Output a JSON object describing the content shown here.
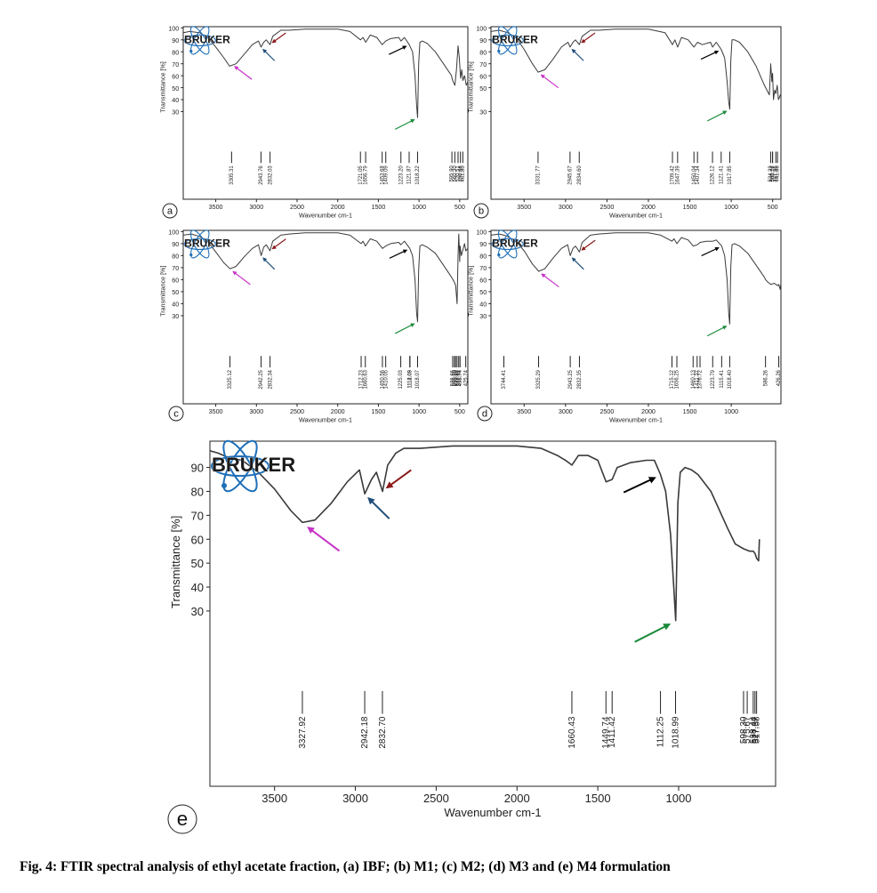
{
  "figure": {
    "caption": "Fig. 4: FTIR spectral analysis of ethyl acetate fraction, (a) IBF; (b) M1; (c) M2; (d) M3 and (e) M4 formulation",
    "brand_logo_text": "BRUKER",
    "colors": {
      "spectrum": "#3a3a3a",
      "logo_blue": "#1f6fb8",
      "arrow_magenta": "#c832c8",
      "arrow_blue": "#1f4e79",
      "arrow_darkred": "#8b1a1a",
      "arrow_black": "#000000",
      "arrow_green": "#1a8a3a"
    }
  },
  "chart_data": [
    {
      "panel": "a",
      "type": "line",
      "xlabel": "Wavenumber cm-1",
      "ylabel": "Transmittance [%]",
      "xlim": [
        3900,
        400
      ],
      "ylim": [
        0,
        101
      ],
      "x_ticks": [
        3500,
        3000,
        2500,
        2000,
        1500,
        1000,
        500
      ],
      "y_ticks": [
        30,
        40,
        50,
        60,
        70,
        80,
        90,
        100
      ],
      "peak_labels": [
        "3305.31",
        "2943.76",
        "2832.03",
        "1721.05",
        "1656.79",
        "1453.68",
        "1409.09",
        "1223.20",
        "1121.87",
        "1018.22",
        "595.90",
        "560.30",
        "520.51",
        "490.66",
        "461.80"
      ],
      "series": [
        {
          "x": [
            3900,
            3820,
            3700,
            3600,
            3500,
            3400,
            3330,
            3250,
            3150,
            3050,
            2975,
            2943,
            2910,
            2880,
            2832,
            2800,
            2700,
            2600,
            2400,
            2000,
            1850,
            1720,
            1690,
            1656,
            1600,
            1520,
            1453,
            1409,
            1350,
            1250,
            1223,
            1180,
            1121,
            1080,
            1050,
            1030,
            1018,
            1005,
            990,
            960,
            900,
            800,
            700,
            600,
            596,
            580,
            560,
            540,
            520,
            505,
            490,
            475,
            461,
            440,
            420,
            400
          ],
          "y": [
            96,
            97,
            96,
            92,
            84,
            75,
            68,
            70,
            78,
            86,
            89,
            84,
            88,
            90,
            86,
            93,
            98,
            98,
            99,
            99,
            97,
            90,
            92,
            88,
            94,
            92,
            86,
            89,
            91,
            92,
            89,
            92,
            86,
            80,
            60,
            35,
            25,
            70,
            88,
            89,
            87,
            80,
            70,
            60,
            58,
            55,
            52,
            65,
            85,
            75,
            58,
            65,
            56,
            60,
            52,
            55
          ]
        }
      ],
      "annotations": [
        {
          "color": "#c832c8",
          "at_x": 3305
        },
        {
          "color": "#1f4e79",
          "at_x": 2943
        },
        {
          "color": "#8b1a1a",
          "at_x": 2832
        },
        {
          "color": "#000000",
          "at_x": 1121
        },
        {
          "color": "#1a8a3a",
          "at_x": 1018
        }
      ]
    },
    {
      "panel": "b",
      "type": "line",
      "xlabel": "Wavenumber cm-1",
      "ylabel": "Transmittance [%]",
      "xlim": [
        3900,
        400
      ],
      "ylim": [
        0,
        101
      ],
      "x_ticks": [
        3500,
        3000,
        2500,
        2000,
        1500,
        1000,
        500
      ],
      "y_ticks": [
        30,
        50,
        60,
        70,
        80,
        90,
        100
      ],
      "peak_labels": [
        "3331.77",
        "2945.67",
        "2834.60",
        "1709.42",
        "1647.39",
        "1450.04",
        "1407.34",
        "1226.12",
        "1121.41",
        "1017.85",
        "524.33",
        "501.17",
        "500.76",
        "461.86",
        "441.88"
      ],
      "series": [
        {
          "x": [
            3900,
            3800,
            3700,
            3600,
            3500,
            3400,
            3331,
            3250,
            3150,
            3050,
            2970,
            2945,
            2910,
            2880,
            2834,
            2800,
            2700,
            2600,
            2400,
            2000,
            1800,
            1709,
            1680,
            1647,
            1600,
            1520,
            1450,
            1407,
            1350,
            1250,
            1226,
            1180,
            1121,
            1080,
            1050,
            1030,
            1017,
            1005,
            990,
            960,
            900,
            800,
            700,
            600,
            540,
            524,
            510,
            501,
            490,
            475,
            461,
            445,
            430,
            400
          ],
          "y": [
            97,
            98,
            96,
            92,
            82,
            70,
            63,
            65,
            74,
            84,
            88,
            84,
            88,
            90,
            86,
            93,
            98,
            98,
            99,
            99,
            96,
            86,
            90,
            84,
            92,
            90,
            84,
            88,
            86,
            88,
            84,
            88,
            82,
            75,
            55,
            38,
            32,
            72,
            90,
            90,
            88,
            80,
            68,
            52,
            44,
            70,
            55,
            62,
            40,
            48,
            45,
            52,
            40,
            45
          ]
        }
      ],
      "annotations": [
        {
          "color": "#c832c8",
          "at_x": 3331
        },
        {
          "color": "#1f4e79",
          "at_x": 2945
        },
        {
          "color": "#8b1a1a",
          "at_x": 2834
        },
        {
          "color": "#000000",
          "at_x": 1121
        },
        {
          "color": "#1a8a3a",
          "at_x": 1017
        }
      ]
    },
    {
      "panel": "c",
      "type": "line",
      "xlabel": "Wavenumber cm-1",
      "ylabel": "Transmittance [%]",
      "xlim": [
        3900,
        400
      ],
      "ylim": [
        0,
        101
      ],
      "x_ticks": [
        3500,
        3000,
        2500,
        2000,
        1500,
        1000,
        500
      ],
      "y_ticks": [
        30,
        40,
        50,
        60,
        70,
        80,
        90,
        100
      ],
      "peak_labels": [
        "3325.12",
        "2942.25",
        "2832.34",
        "1712.23",
        "1660.63",
        "1450.56",
        "1410.05",
        "1225.03",
        "1112.09",
        "1114.03",
        "1018.07",
        "586.66",
        "566.30",
        "550.90",
        "532.84",
        "512.44",
        "495.74",
        "425.74"
      ],
      "series": [
        {
          "x": [
            3900,
            3800,
            3700,
            3600,
            3500,
            3400,
            3325,
            3250,
            3150,
            3050,
            2975,
            2942,
            2910,
            2880,
            2832,
            2800,
            2700,
            2600,
            2400,
            2000,
            1850,
            1712,
            1690,
            1660,
            1600,
            1520,
            1450,
            1410,
            1350,
            1250,
            1225,
            1180,
            1114,
            1080,
            1050,
            1030,
            1018,
            1005,
            990,
            960,
            900,
            800,
            700,
            600,
            566,
            550,
            532,
            520,
            512,
            500,
            495,
            480,
            440,
            425,
            400
          ],
          "y": [
            97,
            98,
            96,
            92,
            83,
            74,
            69,
            71,
            79,
            86,
            89,
            80,
            87,
            89,
            84,
            92,
            97,
            98,
            99,
            99,
            97,
            90,
            92,
            88,
            94,
            92,
            86,
            88,
            90,
            91,
            89,
            92,
            86,
            80,
            60,
            32,
            25,
            68,
            88,
            89,
            87,
            82,
            72,
            62,
            58,
            55,
            40,
            80,
            98,
            75,
            88,
            80,
            90,
            84,
            86
          ]
        }
      ],
      "annotations": [
        {
          "color": "#c832c8",
          "at_x": 3325
        },
        {
          "color": "#1f4e79",
          "at_x": 2942
        },
        {
          "color": "#8b1a1a",
          "at_x": 2832
        },
        {
          "color": "#000000",
          "at_x": 1114
        },
        {
          "color": "#1a8a3a",
          "at_x": 1018
        }
      ]
    },
    {
      "panel": "d",
      "type": "line",
      "xlabel": "Wavenumber cm-1",
      "ylabel": "Transmittance [%]",
      "xlim": [
        3900,
        400
      ],
      "ylim": [
        0,
        101
      ],
      "x_ticks": [
        3500,
        3000,
        2500,
        2000,
        1500,
        1000
      ],
      "y_ticks": [
        30,
        40,
        50,
        60,
        70,
        80,
        90,
        100
      ],
      "peak_labels": [
        "3744.41",
        "3325.29",
        "2943.25",
        "2832.35",
        "1715.12",
        "1656.25",
        "1460.13",
        "1411.37",
        "1376.72",
        "1223.79",
        "1115.41",
        "1018.40",
        "586.26",
        "426.26"
      ],
      "series": [
        {
          "x": [
            3900,
            3800,
            3744,
            3700,
            3600,
            3500,
            3400,
            3325,
            3250,
            3150,
            3050,
            2975,
            2943,
            2910,
            2880,
            2832,
            2800,
            2700,
            2600,
            2400,
            2000,
            1850,
            1715,
            1690,
            1656,
            1600,
            1520,
            1460,
            1411,
            1376,
            1300,
            1223,
            1180,
            1115,
            1080,
            1050,
            1030,
            1018,
            1005,
            990,
            960,
            900,
            800,
            700,
            600,
            586,
            560,
            520,
            480,
            440,
            426,
            410,
            400
          ],
          "y": [
            97,
            98,
            97,
            96,
            92,
            84,
            73,
            67,
            69,
            78,
            86,
            89,
            80,
            86,
            88,
            83,
            91,
            97,
            98,
            99,
            99,
            97,
            92,
            94,
            90,
            95,
            93,
            88,
            89,
            91,
            92,
            92,
            93,
            88,
            80,
            60,
            32,
            23,
            70,
            89,
            90,
            88,
            82,
            72,
            62,
            60,
            58,
            56,
            57,
            55,
            56,
            52,
            57
          ]
        }
      ],
      "annotations": [
        {
          "color": "#c832c8",
          "at_x": 3325
        },
        {
          "color": "#1f4e79",
          "at_x": 2943
        },
        {
          "color": "#8b1a1a",
          "at_x": 2832
        },
        {
          "color": "#000000",
          "at_x": 1115
        },
        {
          "color": "#1a8a3a",
          "at_x": 1018
        }
      ]
    },
    {
      "panel": "e",
      "type": "line",
      "xlabel": "Wavenumber cm-1",
      "ylabel": "Transmittance [%]",
      "xlim": [
        3900,
        400
      ],
      "ylim": [
        0,
        101
      ],
      "x_ticks": [
        3500,
        3000,
        2500,
        2000,
        1500,
        1000
      ],
      "y_ticks": [
        30,
        40,
        50,
        60,
        70,
        80,
        90
      ],
      "peak_labels": [
        "3327.92",
        "2942.18",
        "2832.70",
        "1660.43",
        "1449.74",
        "1411.42",
        "1112.25",
        "1018.99",
        "598.30",
        "575.67",
        "538.44",
        "527.37",
        "517.58"
      ],
      "series": [
        {
          "x": [
            3900,
            3850,
            3780,
            3700,
            3600,
            3500,
            3400,
            3327,
            3250,
            3150,
            3050,
            2975,
            2942,
            2900,
            2870,
            2832,
            2800,
            2750,
            2700,
            2600,
            2400,
            2000,
            1850,
            1750,
            1700,
            1660,
            1620,
            1560,
            1500,
            1449,
            1411,
            1380,
            1300,
            1200,
            1150,
            1112,
            1080,
            1050,
            1030,
            1018,
            1005,
            990,
            960,
            920,
            880,
            800,
            700,
            650,
            598,
            560,
            538,
            527,
            517,
            505,
            500
          ],
          "y": [
            97,
            96,
            94,
            93,
            88,
            81,
            72,
            67,
            68,
            75,
            84,
            89,
            79,
            85,
            88,
            80,
            91,
            96,
            98,
            98,
            99,
            99,
            98,
            95,
            93,
            91,
            95,
            95,
            93,
            84,
            85,
            90,
            92,
            93,
            93,
            87,
            80,
            62,
            40,
            26,
            75,
            88,
            90,
            89,
            87,
            80,
            65,
            58,
            56,
            55,
            55,
            54,
            52,
            51,
            60
          ]
        }
      ],
      "annotations": [
        {
          "color": "#c832c8",
          "at_x": 3327
        },
        {
          "color": "#1f4e79",
          "at_x": 2942
        },
        {
          "color": "#8b1a1a",
          "at_x": 2832
        },
        {
          "color": "#000000",
          "at_x": 1112
        },
        {
          "color": "#1a8a3a",
          "at_x": 1018
        }
      ]
    }
  ]
}
